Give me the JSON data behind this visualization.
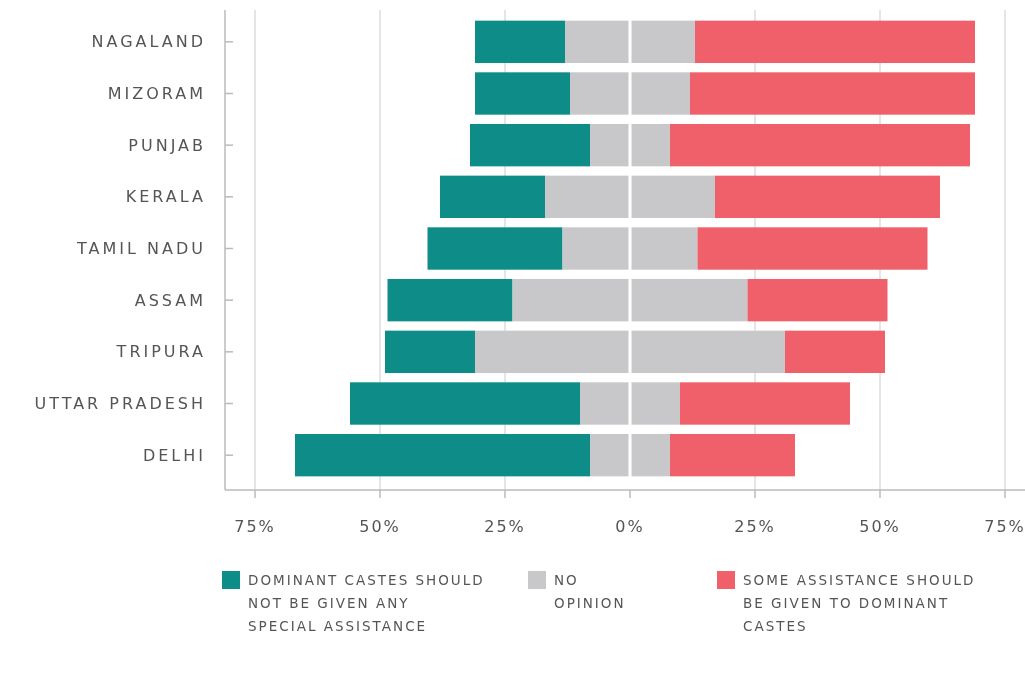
{
  "chart_data": {
    "type": "bar",
    "orientation": "horizontal",
    "categories": [
      "NAGALAND",
      "MIZORAM",
      "PUNJAB",
      "KERALA",
      "TAMIL NADU",
      "ASSAM",
      "TRIPURA",
      "UTTAR PRADESH",
      "DELHI"
    ],
    "series": [
      {
        "name": "DOMINANT CASTES SHOULD NOT BE GIVEN ANY SPECIAL ASSISTANCE",
        "color": "#0e8c87",
        "values": [
          18,
          19,
          24,
          21,
          27,
          25,
          18,
          46,
          59
        ],
        "base": [
          -31,
          -31,
          -32,
          -38,
          -40.5,
          -48.5,
          -49,
          -56,
          -67
        ]
      },
      {
        "name": "NO OPINION",
        "color": "#c8c8ca",
        "values": [
          26,
          24,
          16,
          34,
          27,
          47,
          62,
          20,
          16
        ],
        "base": [
          -13,
          -12,
          -8,
          -17,
          -13.5,
          -23.5,
          -31,
          -10,
          -8
        ]
      },
      {
        "name": "SOME ASSISTANCE SHOULD BE GIVEN TO DOMINANT CASTES",
        "color": "#f0606a",
        "values": [
          56,
          57,
          60,
          45,
          46,
          28,
          20,
          34,
          25
        ],
        "base": [
          13,
          12,
          8,
          17,
          13.5,
          23.5,
          31,
          10,
          8
        ]
      }
    ],
    "xlim": [
      -81,
      79
    ],
    "xticks": [
      {
        "value": -75,
        "label": "75%"
      },
      {
        "value": -50,
        "label": "50%"
      },
      {
        "value": -25,
        "label": "25%"
      },
      {
        "value": 0,
        "label": "0%"
      },
      {
        "value": 25,
        "label": "25%"
      },
      {
        "value": 50,
        "label": "50%"
      },
      {
        "value": 75,
        "label": "75%"
      }
    ],
    "grid": "x",
    "legend": "bottom"
  }
}
